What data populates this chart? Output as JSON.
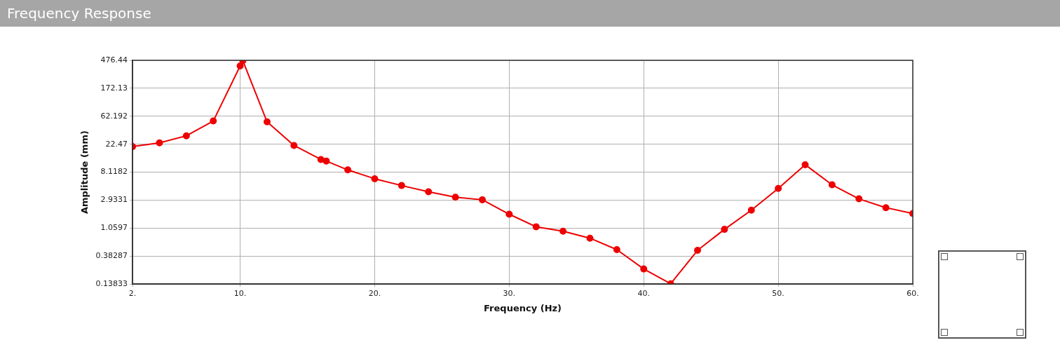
{
  "chart_data": {
    "type": "line",
    "title": "Frequency Response",
    "xlabel": "Frequency (Hz)",
    "ylabel": "Amplitude (mm)",
    "x": [
      2,
      4,
      6,
      8,
      10,
      10.2,
      12,
      14,
      16,
      16.4,
      18,
      20,
      22,
      24,
      26,
      28,
      30,
      32,
      34,
      36,
      38,
      40,
      42,
      44,
      46,
      48,
      50,
      52,
      54,
      56,
      58,
      60
    ],
    "series": [
      {
        "color": "#ee0000",
        "values": [
          20.6,
          23.6,
          30.5,
          52.3,
          388,
          470,
          50.7,
          21.5,
          12.9,
          12.2,
          8.83,
          6.4,
          5.0,
          3.98,
          3.27,
          2.98,
          1.76,
          1.115,
          0.95,
          0.736,
          0.485,
          0.24,
          0.14,
          0.473,
          1.015,
          2.04,
          4.49,
          10.66,
          5.14,
          3.08,
          2.23,
          1.81
        ]
      }
    ],
    "log": "y",
    "xlim": [
      2,
      60
    ],
    "xticks": [
      {
        "value": 2,
        "label": "2."
      },
      {
        "value": 10,
        "label": "10."
      },
      {
        "value": 20,
        "label": "20."
      },
      {
        "value": 30,
        "label": "30."
      },
      {
        "value": 40,
        "label": "40."
      },
      {
        "value": 50,
        "label": "50."
      },
      {
        "value": 60,
        "label": "60."
      }
    ],
    "ylim": [
      0.13833,
      476.44
    ],
    "yticks": [
      0.13833,
      0.38287,
      1.0597,
      2.9331,
      8.1182,
      22.47,
      62.192,
      172.13,
      476.44
    ],
    "grid": true,
    "legend": false,
    "marker": "circle",
    "line_style": "solid"
  }
}
